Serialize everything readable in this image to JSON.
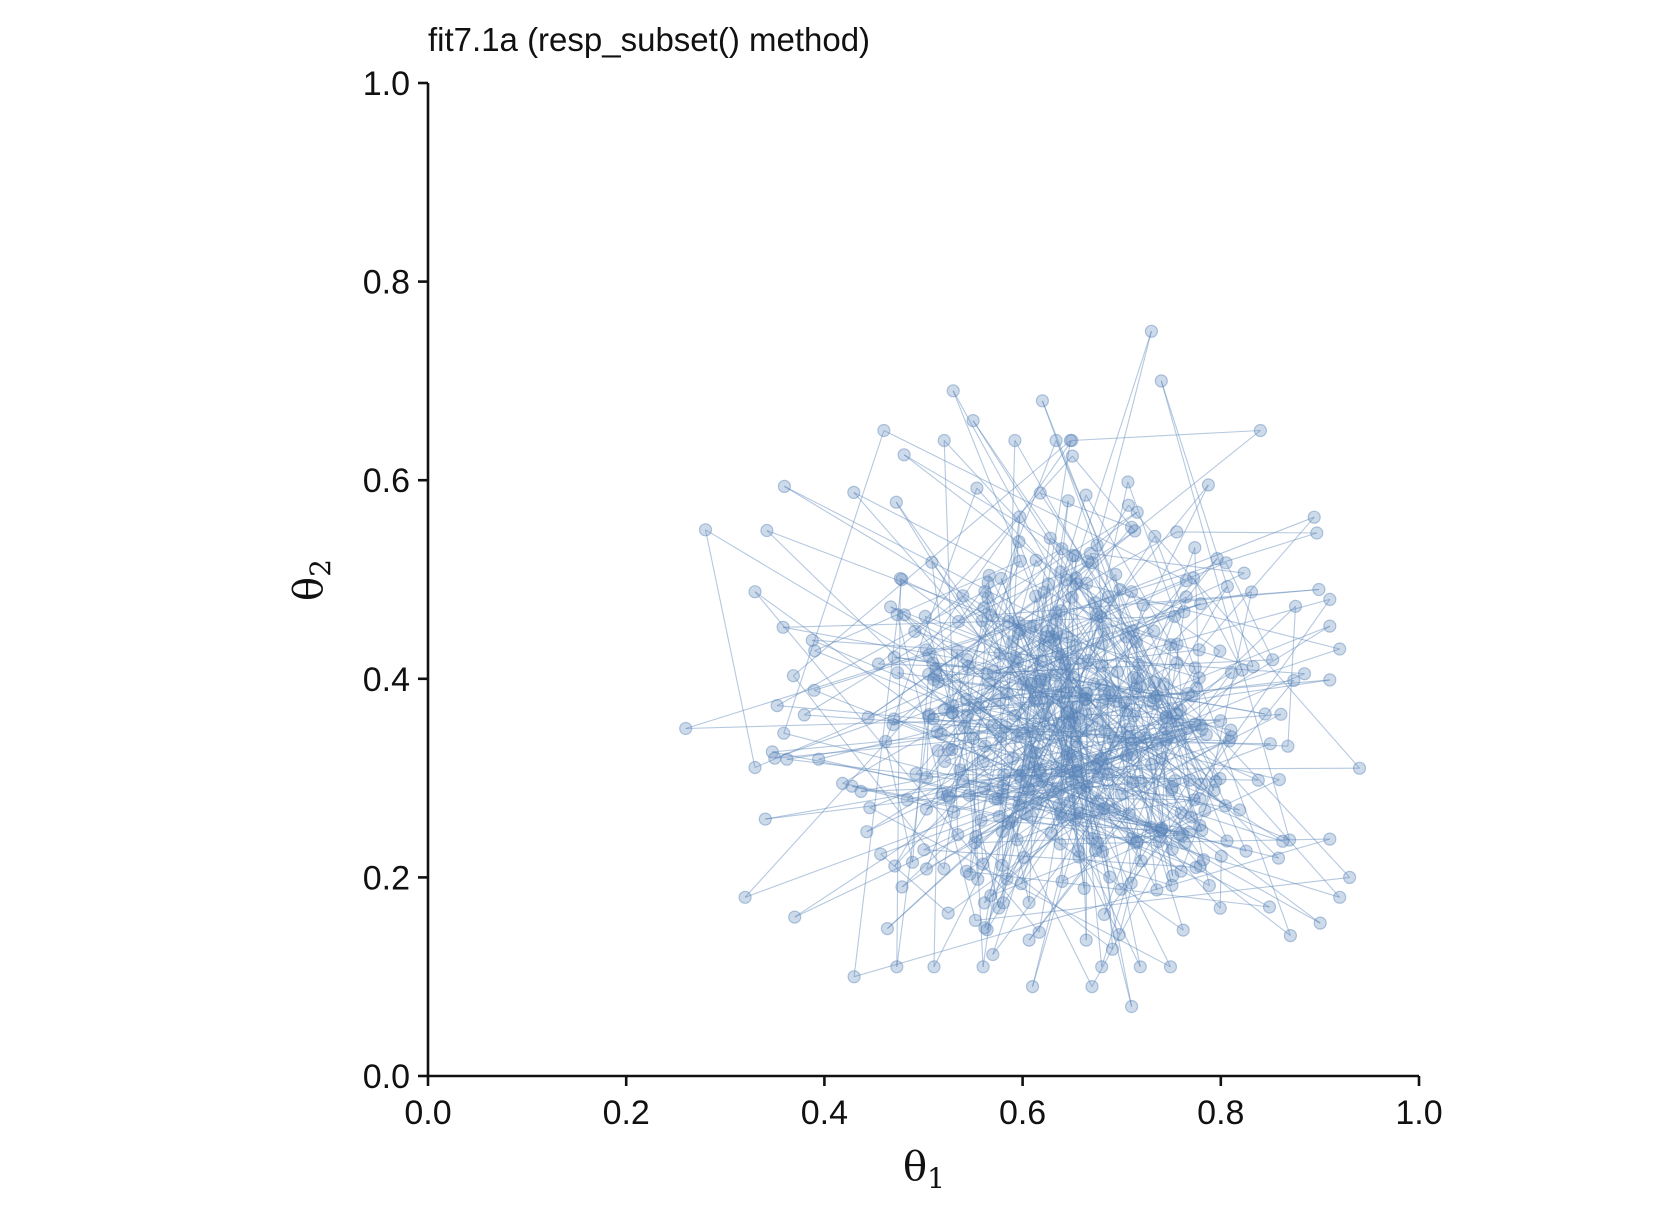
{
  "chart_data": {
    "type": "scatter",
    "connected": true,
    "title": "fit7.1a (resp_subset() method)",
    "xlabel": "θ",
    "xlabel_sub": "1",
    "ylabel": "θ",
    "ylabel_sub": "2",
    "xlim": [
      0.0,
      1.0
    ],
    "ylim": [
      0.0,
      1.0
    ],
    "xticks": [
      "0.0",
      "0.2",
      "0.4",
      "0.6",
      "0.8",
      "1.0"
    ],
    "yticks": [
      "0.0",
      "0.2",
      "0.4",
      "0.6",
      "0.8",
      "1.0"
    ],
    "xtick_values": [
      0.0,
      0.2,
      0.4,
      0.6,
      0.8,
      1.0
    ],
    "ytick_values": [
      0.0,
      0.2,
      0.4,
      0.6,
      0.8,
      1.0
    ],
    "grid": false,
    "series_color": "#5b84b8",
    "n_points": 500,
    "points_note": "Markov-chain samples connected in sequence; salient extremes listed, remaining draws generated around center (0.65, 0.36)",
    "extreme_points": [
      {
        "x": 0.73,
        "y": 0.75
      },
      {
        "x": 0.74,
        "y": 0.7
      },
      {
        "x": 0.53,
        "y": 0.69
      },
      {
        "x": 0.62,
        "y": 0.68
      },
      {
        "x": 0.55,
        "y": 0.66
      },
      {
        "x": 0.46,
        "y": 0.65
      },
      {
        "x": 0.84,
        "y": 0.65
      },
      {
        "x": 0.28,
        "y": 0.55
      },
      {
        "x": 0.26,
        "y": 0.35
      },
      {
        "x": 0.35,
        "y": 0.32
      },
      {
        "x": 0.32,
        "y": 0.18
      },
      {
        "x": 0.37,
        "y": 0.16
      },
      {
        "x": 0.43,
        "y": 0.1
      },
      {
        "x": 0.61,
        "y": 0.09
      },
      {
        "x": 0.67,
        "y": 0.09
      },
      {
        "x": 0.71,
        "y": 0.07
      },
      {
        "x": 0.94,
        "y": 0.31
      },
      {
        "x": 0.93,
        "y": 0.2
      },
      {
        "x": 0.92,
        "y": 0.18
      },
      {
        "x": 0.91,
        "y": 0.48
      },
      {
        "x": 0.92,
        "y": 0.43
      }
    ],
    "center": {
      "x": 0.65,
      "y": 0.36
    },
    "spread": {
      "x": 0.12,
      "y": 0.12
    }
  }
}
